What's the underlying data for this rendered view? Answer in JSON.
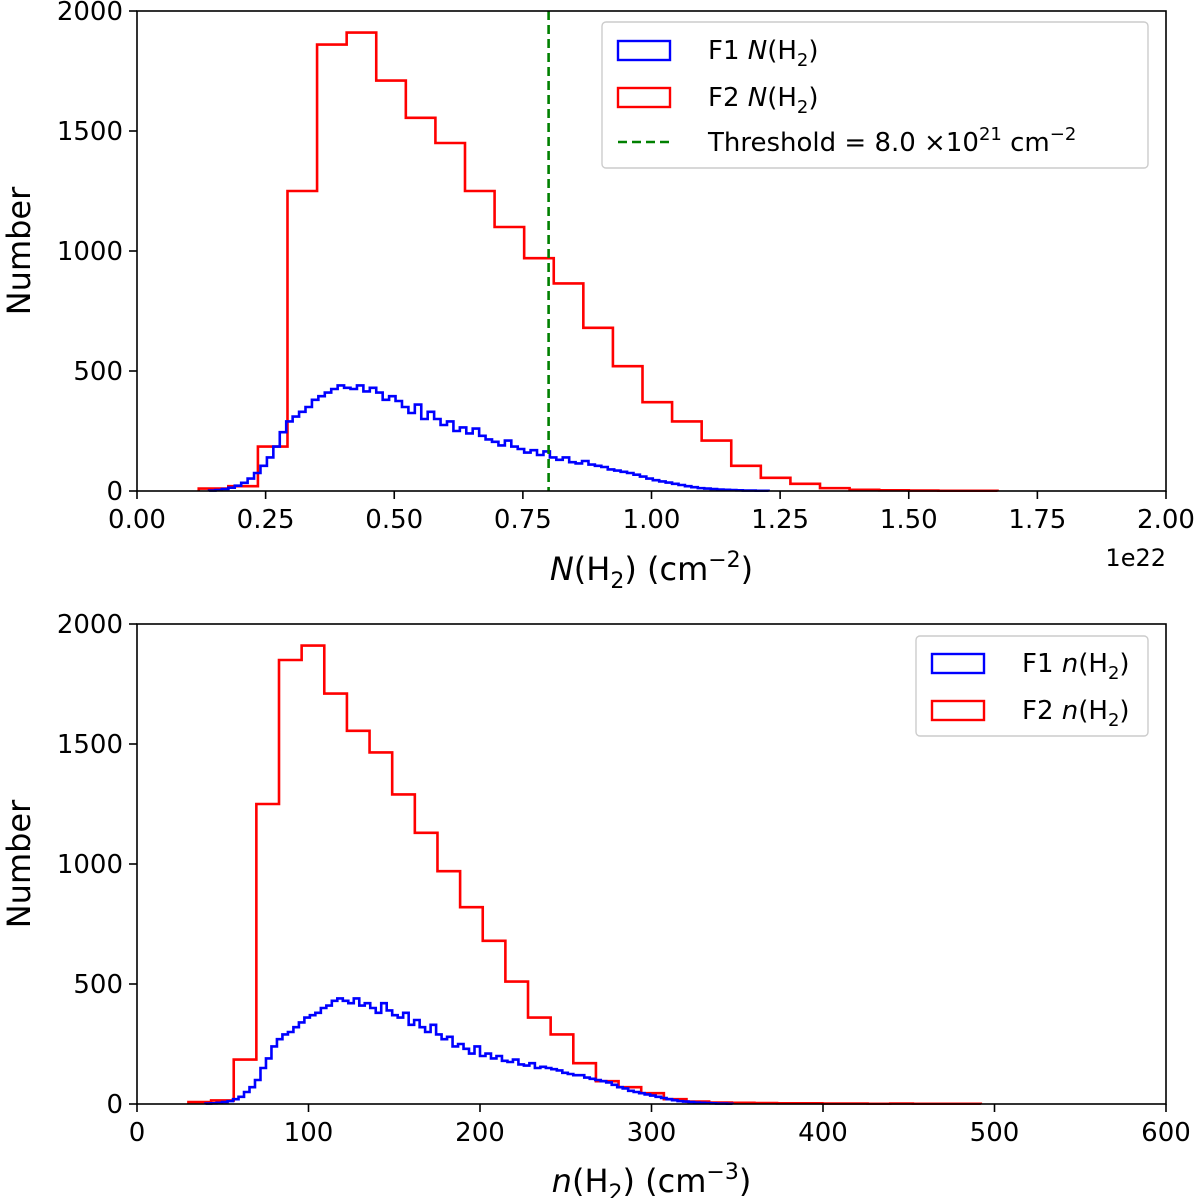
{
  "colors": {
    "f1": "#0000ff",
    "f2": "#ff0000",
    "threshold": "#008000",
    "axes": "#000000"
  },
  "chart_data": [
    {
      "type": "histogram",
      "title": "",
      "xlabel": {
        "italic": "N",
        "rest": "(H",
        "sub": "2",
        "tail": ") (cm",
        "sup": "−2",
        "close": ")"
      },
      "ylabel": "Number",
      "x_offset_text": "1e22",
      "xlim": [
        0.0,
        2.0
      ],
      "ylim": [
        0,
        2000
      ],
      "x_ticks": [
        0.0,
        0.25,
        0.5,
        0.75,
        1.0,
        1.25,
        1.5,
        1.75,
        2.0
      ],
      "x_tick_labels": [
        "0.00",
        "0.25",
        "0.50",
        "0.75",
        "1.00",
        "1.25",
        "1.50",
        "1.75",
        "2.00"
      ],
      "y_ticks": [
        0,
        500,
        1000,
        1500,
        2000
      ],
      "y_tick_labels": [
        "0",
        "500",
        "1000",
        "1500",
        "2000"
      ],
      "threshold": 0.8,
      "legend_position": "upper right",
      "legend": [
        {
          "key": "f1",
          "style": "patch",
          "pre": "F1 ",
          "italic": "N",
          "rest": "(H",
          "sub": "2",
          "tail": ")"
        },
        {
          "key": "f2",
          "style": "patch",
          "pre": "F2 ",
          "italic": "N",
          "rest": "(H",
          "sub": "2",
          "tail": ")"
        },
        {
          "key": "threshold",
          "style": "dashed",
          "pre": "Threshold = 8.0 ×10",
          "sup": "21",
          "tail": " cm",
          "sup2": "−2"
        }
      ],
      "series": [
        {
          "name": "F2 N(H2)",
          "color_key": "f2",
          "start": 0.12,
          "width": 0.0575,
          "values": [
            10,
            20,
            185,
            1250,
            1860,
            1910,
            1710,
            1555,
            1450,
            1250,
            1100,
            970,
            865,
            680,
            520,
            370,
            290,
            210,
            105,
            55,
            30,
            12,
            5,
            3,
            2,
            1,
            1
          ]
        },
        {
          "name": "F1 N(H2)",
          "color_key": "f1",
          "start": 0.14,
          "width": 0.0125,
          "values": [
            2,
            4,
            8,
            14,
            22,
            34,
            52,
            75,
            105,
            140,
            185,
            245,
            290,
            310,
            330,
            350,
            380,
            395,
            410,
            425,
            440,
            430,
            425,
            440,
            415,
            430,
            410,
            380,
            395,
            375,
            350,
            325,
            360,
            300,
            330,
            300,
            275,
            290,
            250,
            265,
            240,
            260,
            230,
            215,
            205,
            190,
            210,
            185,
            175,
            160,
            170,
            150,
            165,
            140,
            130,
            140,
            120,
            115,
            125,
            110,
            105,
            100,
            90,
            85,
            80,
            75,
            68,
            60,
            52,
            45,
            40,
            35,
            30,
            25,
            20,
            16,
            12,
            10,
            8,
            6,
            5,
            4,
            3,
            2,
            2,
            1,
            1
          ]
        }
      ]
    },
    {
      "type": "histogram",
      "title": "",
      "xlabel": {
        "italic": "n",
        "rest": "(H",
        "sub": "2",
        "tail": ") (cm",
        "sup": "−3",
        "close": ")"
      },
      "ylabel": "Number",
      "xlim": [
        0,
        600
      ],
      "ylim": [
        0,
        2000
      ],
      "x_ticks": [
        0,
        100,
        200,
        300,
        400,
        500,
        600
      ],
      "x_tick_labels": [
        "0",
        "100",
        "200",
        "300",
        "400",
        "500",
        "600"
      ],
      "y_ticks": [
        0,
        500,
        1000,
        1500,
        2000
      ],
      "y_tick_labels": [
        "0",
        "500",
        "1000",
        "1500",
        "2000"
      ],
      "legend_position": "upper right",
      "legend": [
        {
          "key": "f1",
          "style": "patch",
          "pre": "F1 ",
          "italic": "n",
          "rest": "(H",
          "sub": "2",
          "tail": ")"
        },
        {
          "key": "f2",
          "style": "patch",
          "pre": "F2 ",
          "italic": "n",
          "rest": "(H",
          "sub": "2",
          "tail": ")"
        }
      ],
      "series": [
        {
          "name": "F2 n(H2)",
          "color_key": "f2",
          "start": 30,
          "width": 13.2,
          "values": [
            8,
            15,
            185,
            1250,
            1850,
            1910,
            1710,
            1555,
            1465,
            1290,
            1130,
            970,
            820,
            680,
            510,
            360,
            290,
            170,
            95,
            70,
            45,
            20,
            10,
            6,
            5,
            4,
            3,
            3,
            2,
            2,
            1,
            2,
            1,
            1,
            1
          ]
        },
        {
          "name": "F1 n(H2)",
          "color_key": "f1",
          "start": 40,
          "width": 3.2,
          "values": [
            2,
            3,
            5,
            8,
            12,
            20,
            30,
            50,
            70,
            100,
            150,
            190,
            240,
            270,
            290,
            300,
            320,
            340,
            360,
            370,
            380,
            400,
            410,
            430,
            440,
            430,
            420,
            440,
            410,
            420,
            400,
            380,
            420,
            390,
            370,
            360,
            380,
            330,
            350,
            320,
            300,
            330,
            290,
            270,
            280,
            240,
            250,
            230,
            210,
            240,
            200,
            210,
            190,
            200,
            180,
            175,
            185,
            165,
            160,
            170,
            150,
            155,
            150,
            145,
            140,
            130,
            125,
            120,
            120,
            110,
            105,
            100,
            95,
            90,
            80,
            70,
            65,
            55,
            50,
            45,
            40,
            35,
            30,
            25,
            20,
            16,
            12,
            10,
            8,
            6,
            5,
            4,
            3,
            2,
            2,
            1
          ]
        }
      ]
    }
  ]
}
